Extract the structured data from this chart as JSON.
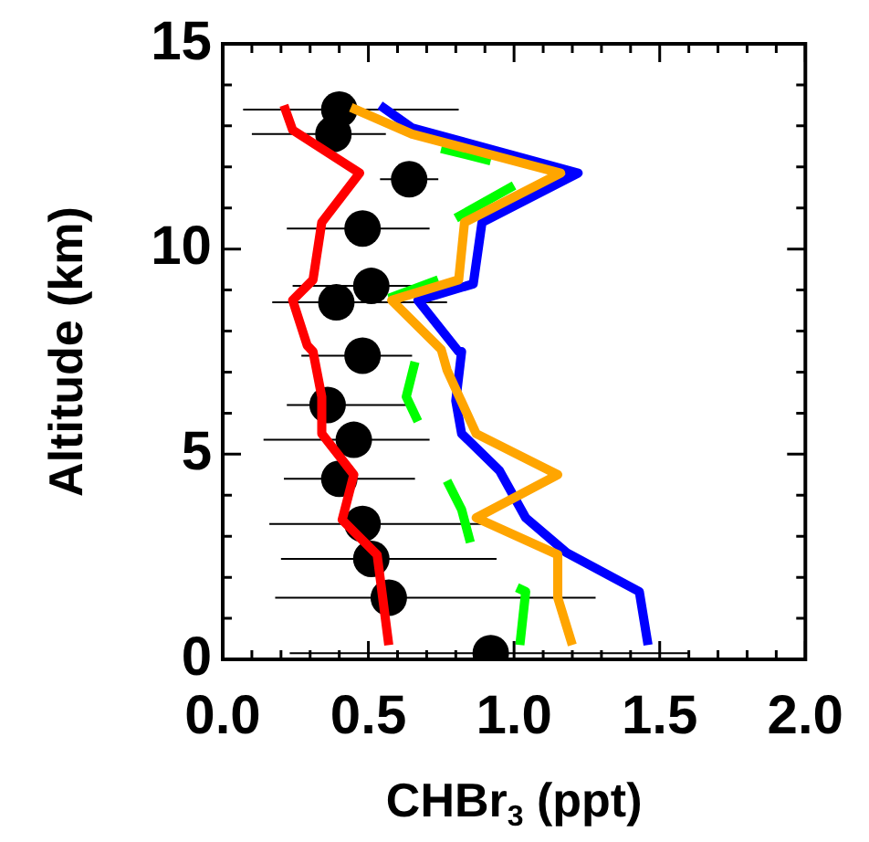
{
  "chart_data": {
    "type": "line",
    "xlabel": "CHBr$_{3}$ (ppt)",
    "ylabel": "Altitude (km)",
    "xlim": [
      0,
      2
    ],
    "ylim": [
      0,
      15
    ],
    "xticks": [
      {
        "value": 0,
        "label": "0.0"
      },
      {
        "value": 0.1,
        "label": null
      },
      {
        "value": 0.2,
        "label": null
      },
      {
        "value": 0.3,
        "label": null
      },
      {
        "value": 0.4,
        "label": null
      },
      {
        "value": 0.5,
        "label": "0.5"
      },
      {
        "value": 0.6,
        "label": null
      },
      {
        "value": 0.7,
        "label": null
      },
      {
        "value": 0.8,
        "label": null
      },
      {
        "value": 0.9,
        "label": null
      },
      {
        "value": 1,
        "label": "1.0"
      },
      {
        "value": 1.1,
        "label": null
      },
      {
        "value": 1.2,
        "label": null
      },
      {
        "value": 1.3,
        "label": null
      },
      {
        "value": 1.4,
        "label": null
      },
      {
        "value": 1.5,
        "label": "1.5"
      },
      {
        "value": 1.6,
        "label": null
      },
      {
        "value": 1.7,
        "label": null
      },
      {
        "value": 1.8,
        "label": null
      },
      {
        "value": 1.9,
        "label": null
      },
      {
        "value": 2,
        "label": "2.0"
      }
    ],
    "yticks": [
      0,
      {
        "value": 1,
        "label": null
      },
      {
        "value": 2,
        "label": null
      },
      {
        "value": 3,
        "label": null
      },
      {
        "value": 4,
        "label": null
      },
      5,
      {
        "value": 6,
        "label": null
      },
      {
        "value": 7,
        "label": null
      },
      {
        "value": 8,
        "label": null
      },
      {
        "value": 9,
        "label": null
      },
      10,
      {
        "value": 11,
        "label": null
      },
      {
        "value": 12,
        "label": null
      },
      {
        "value": 13,
        "label": null
      },
      {
        "value": 14,
        "label": null
      },
      15
    ],
    "grid": false,
    "legend": false,
    "line_style": "solid",
    "series": [
      {
        "type": "line",
        "marker": "none",
        "color": "#ff0000",
        "x": [
          0.21,
          0.24,
          0.47,
          0.34,
          0.31,
          0.24,
          0.29,
          0.31,
          0.34,
          0.34,
          0.45,
          0.41,
          0.53,
          0.57
        ],
        "values": [
          13.5,
          12.9,
          11.85,
          10.65,
          9.25,
          8.75,
          7.65,
          7.5,
          6.4,
          5.5,
          4.5,
          3.4,
          2.55,
          0.35
        ]
      },
      {
        "type": "line",
        "marker": "none",
        "color": "#ffa500",
        "x": [
          0.44,
          0.65,
          1.16,
          0.83,
          0.81,
          0.58,
          0.75,
          0.77,
          0.87,
          1.15,
          0.87,
          1.15,
          1.15,
          1.2
        ],
        "values": [
          13.45,
          12.8,
          11.85,
          10.65,
          9.25,
          8.75,
          7.55,
          7.05,
          5.5,
          4.5,
          3.45,
          2.55,
          1.5,
          0.35
        ]
      },
      {
        "type": "line",
        "marker": "none",
        "color": "#0000ff",
        "x": [
          0.54,
          0.65,
          1.22,
          0.89,
          0.86,
          0.67,
          0.81,
          0.82,
          0.8,
          0.82,
          0.95,
          1.04,
          1.18,
          1.43,
          1.46
        ],
        "values": [
          13.5,
          12.95,
          11.85,
          10.65,
          9.15,
          8.75,
          7.5,
          7.5,
          6.3,
          5.5,
          4.6,
          3.45,
          2.6,
          1.65,
          0.35
        ]
      },
      {
        "type": "line",
        "marker": "none",
        "color": "#00ff00",
        "x": [
          0.75,
          0.92,
          null,
          0.8,
          1,
          null,
          0.57,
          0.74,
          null,
          0.66,
          0.63,
          0.67,
          null,
          0.77,
          0.82,
          0.85,
          null,
          1.01,
          1.04,
          1.02
        ],
        "values": [
          12.45,
          12.15,
          null,
          10.75,
          11.55,
          null,
          8.8,
          9.25,
          null,
          7.25,
          6.4,
          5.8,
          null,
          4.35,
          3.65,
          2.85,
          null,
          1.75,
          1.65,
          0.35
        ]
      },
      {
        "type": "scatter",
        "marker": "circle",
        "color": "#000000",
        "x": [
          0.4,
          0.38,
          0.64,
          0.48,
          0.51,
          0.39,
          0.48,
          0.36,
          0.45,
          0.4,
          0.48,
          0.51,
          0.57,
          0.92
        ],
        "values": [
          13.4,
          12.8,
          11.7,
          10.5,
          9.1,
          8.7,
          7.4,
          6.2,
          5.35,
          4.4,
          3.3,
          2.45,
          1.5,
          0.15
        ],
        "xerrors": [
          [
            0.07,
            0.81
          ],
          [
            0.1,
            0.56
          ],
          [
            0.54,
            0.74
          ],
          [
            0.22,
            0.71
          ],
          [
            0.24,
            0.74
          ],
          [
            0.17,
            0.77
          ],
          [
            0.27,
            0.65
          ],
          [
            0.22,
            0.65
          ],
          [
            0.14,
            0.71
          ],
          [
            0.21,
            0.66
          ],
          [
            0.16,
            0.93
          ],
          [
            0.2,
            0.94
          ],
          [
            0.18,
            1.28
          ],
          [
            0.23,
            1.6
          ]
        ]
      }
    ]
  }
}
